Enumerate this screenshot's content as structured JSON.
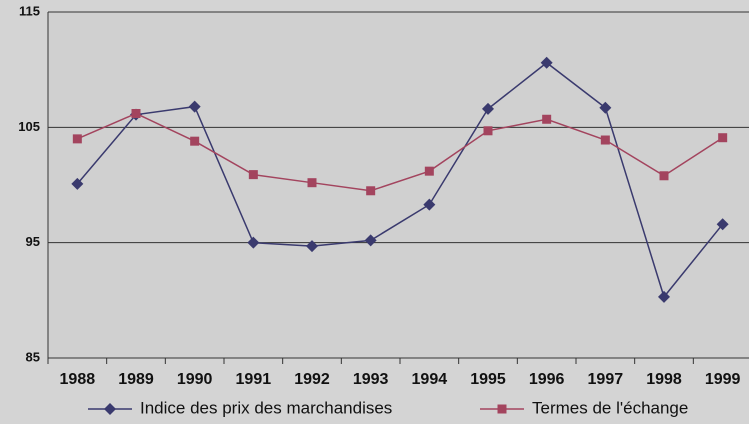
{
  "chart_data": {
    "type": "line",
    "categories": [
      "1988",
      "1989",
      "1990",
      "1991",
      "1992",
      "1993",
      "1994",
      "1995",
      "1996",
      "1997",
      "1998",
      "1999"
    ],
    "series": [
      {
        "name": "Indice des prix des marchandises",
        "color": "#3a3a6e",
        "marker": "diamond",
        "values": [
          100.1,
          106.1,
          106.8,
          95.0,
          94.7,
          95.2,
          98.3,
          106.6,
          110.6,
          106.7,
          90.3,
          96.6
        ]
      },
      {
        "name": "Termes de l'échange",
        "color": "#a3445e",
        "marker": "square",
        "values": [
          104.0,
          106.2,
          103.8,
          100.9,
          100.2,
          99.5,
          101.2,
          104.7,
          105.7,
          103.9,
          100.8,
          104.1
        ]
      }
    ],
    "ylim": [
      85,
      115
    ],
    "yticks": [
      85,
      95,
      105,
      115
    ],
    "grid": true,
    "legend": "bottom"
  }
}
